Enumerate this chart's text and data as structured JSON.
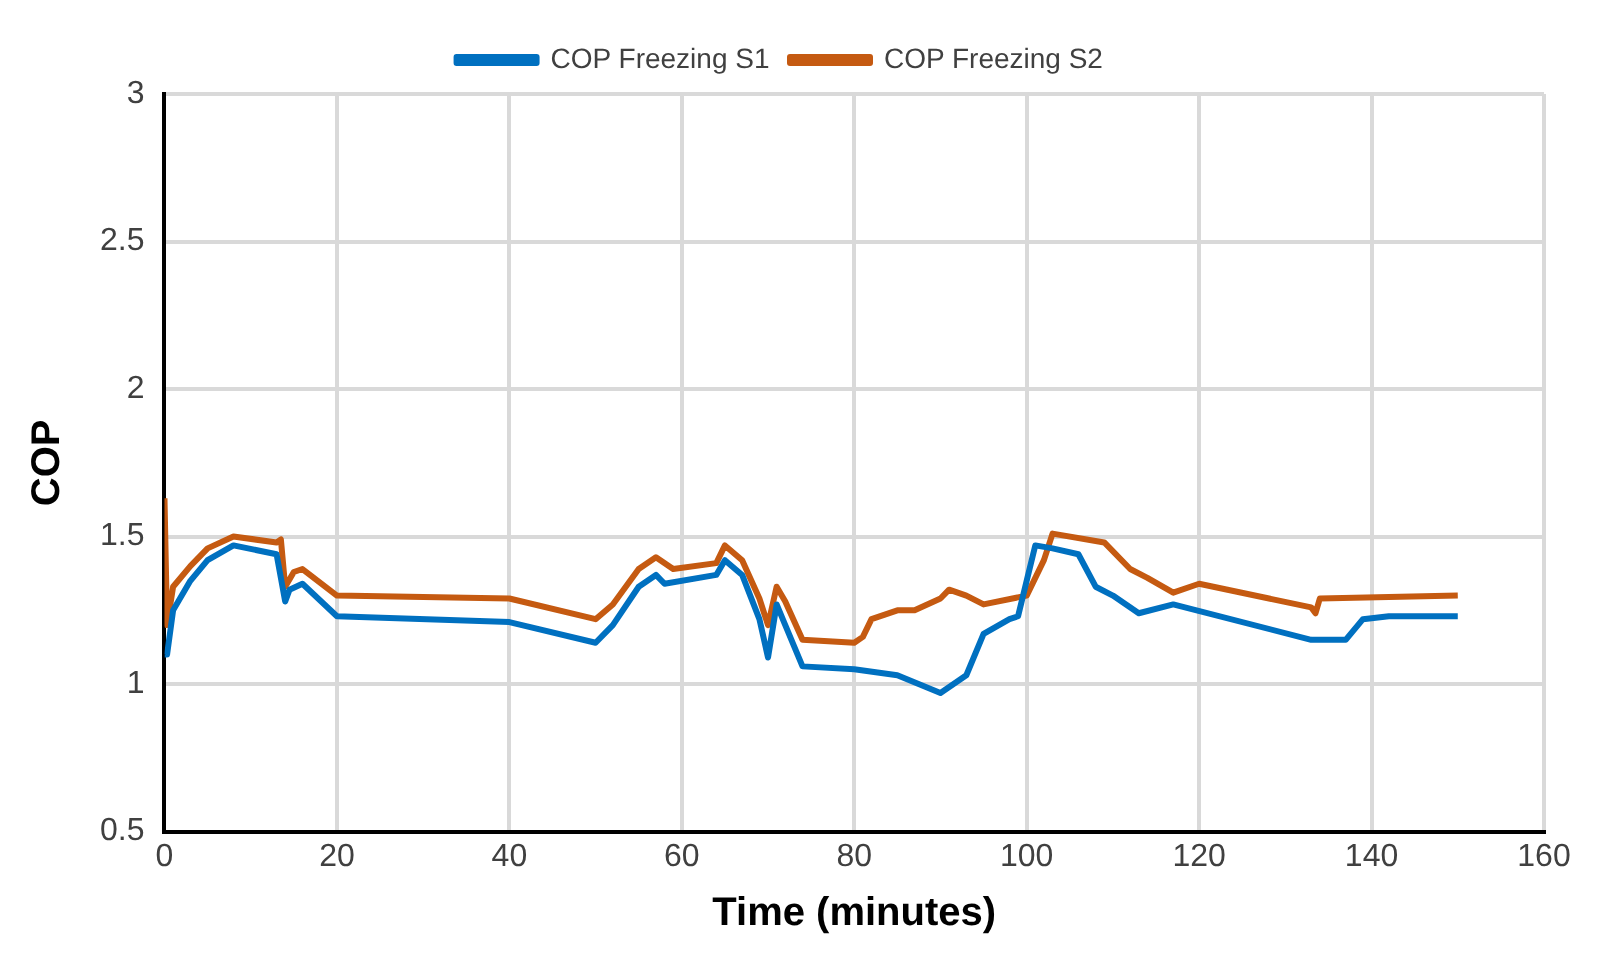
{
  "chart_data": {
    "type": "line",
    "xlabel": "Time (minutes)",
    "ylabel": "COP",
    "xlim": [
      0,
      160
    ],
    "xticks": [
      0,
      20,
      40,
      60,
      80,
      100,
      120,
      140,
      160
    ],
    "ylim": [
      0.5,
      3
    ],
    "yticks": [
      0.5,
      1,
      1.5,
      2,
      2.5,
      3
    ],
    "grid": true,
    "legend": "top",
    "marker": "none",
    "series": [
      {
        "name": "COP Freezing S1",
        "color": "#0070c0",
        "x": [
          0,
          0.3,
          1,
          3,
          5,
          8,
          13,
          14,
          14.5,
          16,
          20,
          40,
          50,
          52,
          55,
          57,
          58,
          64,
          65,
          67,
          69,
          70,
          71,
          72,
          74,
          80,
          85,
          90,
          93,
          95,
          98,
          99,
          100,
          101,
          103,
          106,
          108,
          110,
          113,
          117,
          133,
          137,
          139,
          142,
          150
        ],
        "values": [
          1.1,
          1.1,
          1.25,
          1.35,
          1.42,
          1.47,
          1.44,
          1.28,
          1.32,
          1.34,
          1.23,
          1.21,
          1.14,
          1.2,
          1.33,
          1.37,
          1.34,
          1.37,
          1.42,
          1.37,
          1.22,
          1.09,
          1.27,
          1.2,
          1.06,
          1.05,
          1.03,
          0.97,
          1.03,
          1.17,
          1.22,
          1.23,
          1.35,
          1.47,
          1.46,
          1.44,
          1.33,
          1.3,
          1.24,
          1.27,
          1.15,
          1.15,
          1.22,
          1.23,
          1.23
        ]
      },
      {
        "name": "COP Freezing S2",
        "color": "#c55a11",
        "x": [
          0,
          0.3,
          1,
          3,
          5,
          8,
          13,
          13.5,
          14,
          15,
          16,
          20,
          40,
          50,
          52,
          55,
          57,
          59,
          64,
          65,
          67,
          69,
          70,
          71,
          72,
          74,
          80,
          81,
          82,
          85,
          87,
          90,
          91,
          93,
          95,
          100,
          101,
          102,
          103,
          109,
          112,
          114,
          117,
          120,
          133,
          133.5,
          134,
          150
        ],
        "values": [
          1.63,
          1.2,
          1.33,
          1.4,
          1.46,
          1.5,
          1.48,
          1.49,
          1.33,
          1.38,
          1.39,
          1.3,
          1.29,
          1.22,
          1.27,
          1.39,
          1.43,
          1.39,
          1.41,
          1.47,
          1.42,
          1.29,
          1.2,
          1.33,
          1.28,
          1.15,
          1.14,
          1.16,
          1.22,
          1.25,
          1.25,
          1.29,
          1.32,
          1.3,
          1.27,
          1.3,
          1.36,
          1.42,
          1.51,
          1.48,
          1.39,
          1.36,
          1.31,
          1.34,
          1.26,
          1.24,
          1.29,
          1.3
        ]
      }
    ]
  }
}
